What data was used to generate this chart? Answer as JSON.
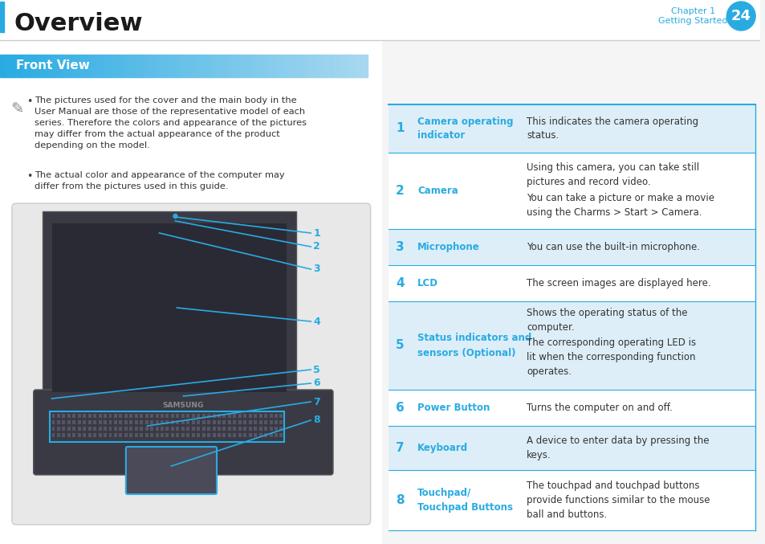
{
  "title": "Overview",
  "chapter": "Chapter 1",
  "chapter_sub": "Getting Started",
  "page_num": "24",
  "section_title": "Front View",
  "bg_color": "#f5f5f5",
  "header_bg": "#ffffff",
  "section_bg_start": "#29abe2",
  "section_bg_end": "#a8d8f0",
  "table_header_line": "#29abe2",
  "table_bg_alt": "#ddeef8",
  "blue_text": "#29abe2",
  "dark_text": "#333333",
  "note_text": "#444444",
  "bullet_text1": "The pictures used for the cover and the main body in the\nUser Manual are those of the representative model of each\nseries. Therefore the colors and appearance of the pictures\nmay differ from the actual appearance of the product\ndepending on the model.",
  "bullet_text2": "The actual color and appearance of the computer may\ndiffer from the pictures used in this guide.",
  "rows": [
    {
      "num": "1",
      "name": "Camera operating\nindicator",
      "desc": "This indicates the camera operating\nstatus.",
      "bg": "#ddeef8"
    },
    {
      "num": "2",
      "name": "Camera",
      "desc": "Using this camera, you can take still\npictures and record video.\n\nYou can take a picture or make a movie\nusing the Charms > Start > Camera.",
      "bg": "#ffffff"
    },
    {
      "num": "3",
      "name": "Microphone",
      "desc": "You can use the built-in microphone.",
      "bg": "#ddeef8"
    },
    {
      "num": "4",
      "name": "LCD",
      "desc": "The screen images are displayed here.",
      "bg": "#ffffff"
    },
    {
      "num": "5",
      "name": "Status indicators and\nsensors (Optional)",
      "desc": "Shows the operating status of the\ncomputer.\n\nThe corresponding operating LED is\nlit when the corresponding function\noperates.",
      "bg": "#ddeef8"
    },
    {
      "num": "6",
      "name": "Power Button",
      "desc": "Turns the computer on and off.",
      "bg": "#ffffff"
    },
    {
      "num": "7",
      "name": "Keyboard",
      "desc": "A device to enter data by pressing the\nkeys.",
      "bg": "#ddeef8"
    },
    {
      "num": "8",
      "name": "Touchpad/\nTouchpad Buttons",
      "desc": "The touchpad and touchpad buttons\nprovide functions similar to the mouse\nball and buttons.",
      "bg": "#ffffff"
    }
  ]
}
